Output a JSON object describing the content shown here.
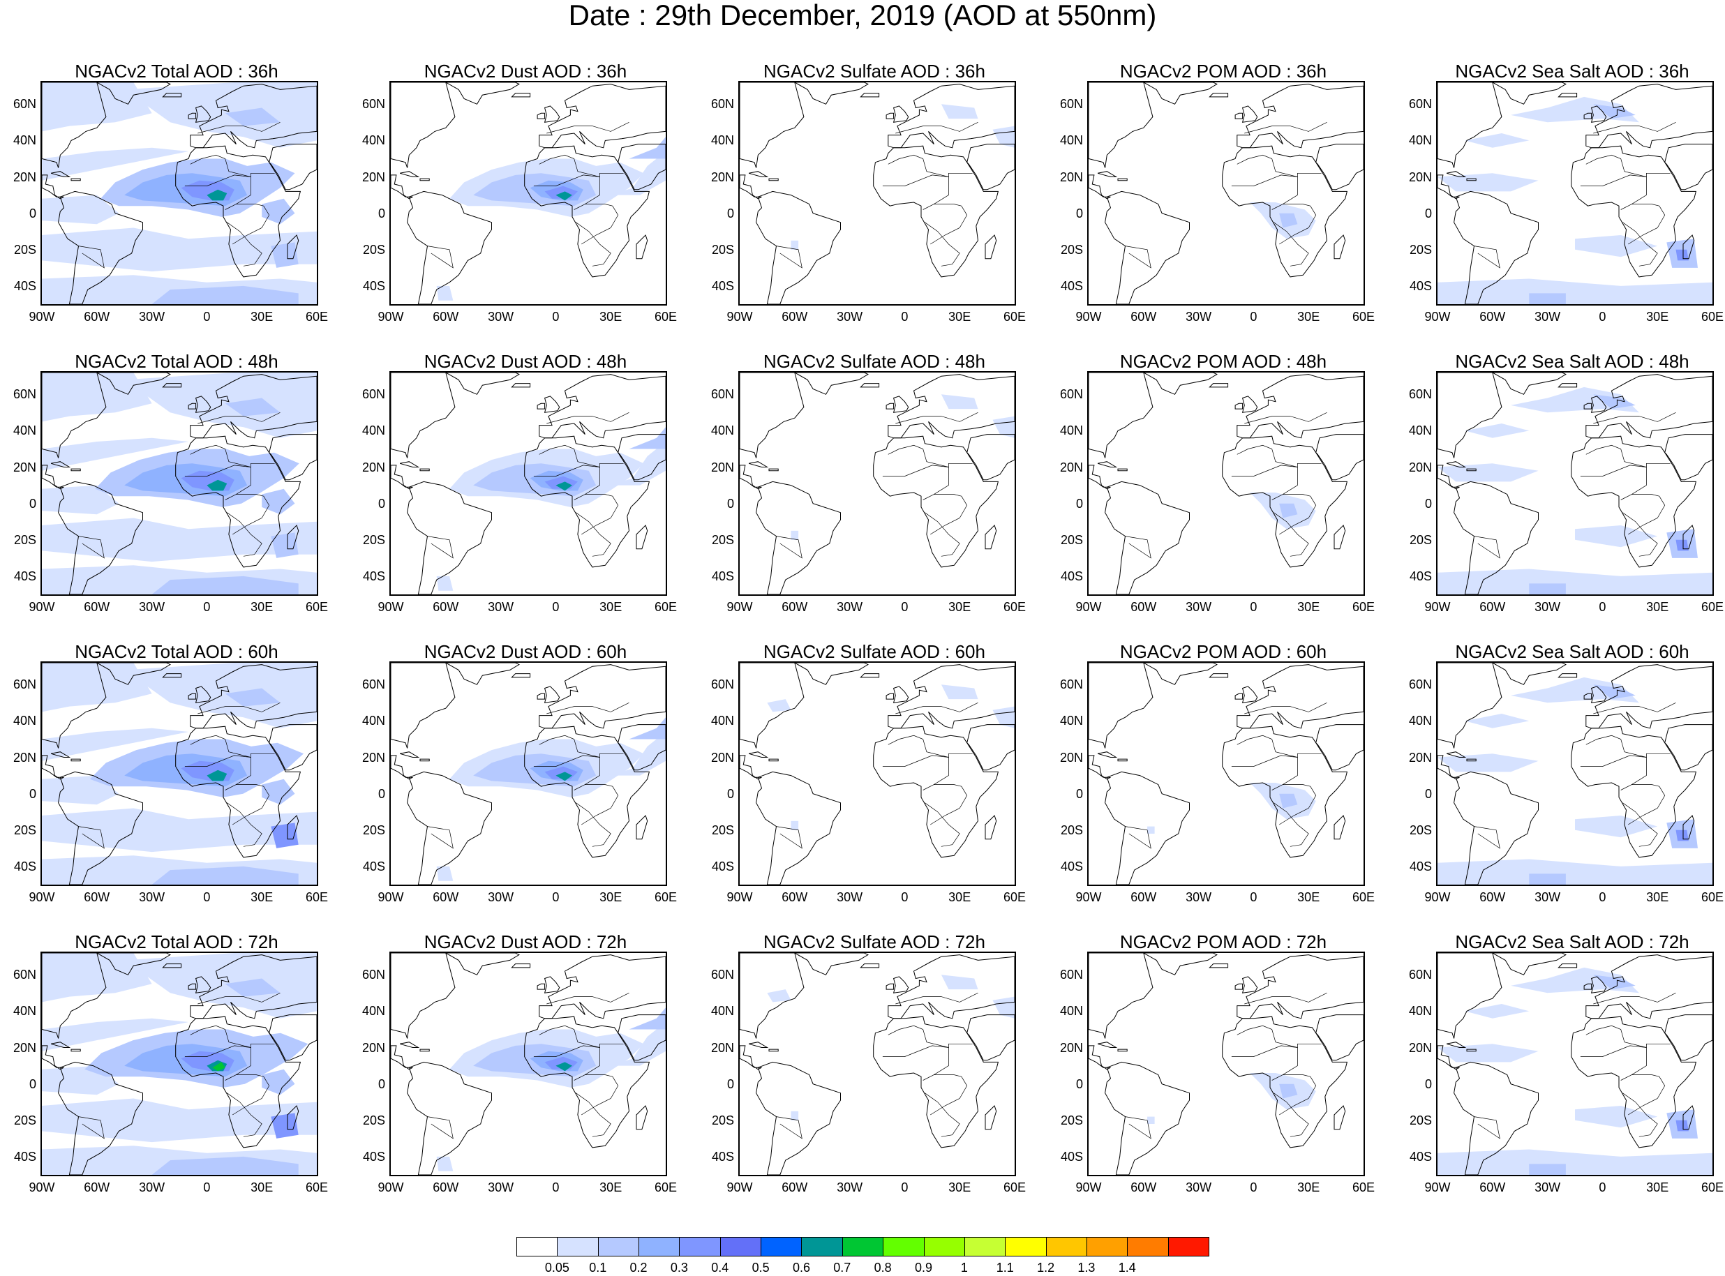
{
  "title": "Date : 29th December, 2019 (AOD at 550nm)",
  "lat_labels": [
    "60N",
    "40N",
    "20N",
    "0",
    "20S",
    "40S"
  ],
  "lon_labels": [
    "90W",
    "60W",
    "30W",
    "0",
    "30E",
    "60E"
  ],
  "panel_titles": [
    [
      "NGACv2 Total AOD : 36h",
      "NGACv2 Dust AOD : 36h",
      "NGACv2 Sulfate AOD : 36h",
      "NGACv2 POM AOD : 36h",
      "NGACv2 Sea Salt AOD : 36h"
    ],
    [
      "NGACv2 Total AOD : 48h",
      "NGACv2 Dust AOD : 48h",
      "NGACv2 Sulfate AOD : 48h",
      "NGACv2 POM AOD : 48h",
      "NGACv2 Sea Salt AOD : 48h"
    ],
    [
      "NGACv2 Total AOD : 60h",
      "NGACv2 Dust AOD : 60h",
      "NGACv2 Sulfate AOD : 60h",
      "NGACv2 POM AOD : 60h",
      "NGACv2 Sea Salt AOD : 60h"
    ],
    [
      "NGACv2 Total AOD : 72h",
      "NGACv2 Dust AOD : 72h",
      "NGACv2 Sulfate AOD : 72h",
      "NGACv2 POM AOD : 72h",
      "NGACv2 Sea Salt  AOD : 72h"
    ]
  ],
  "colorbar": {
    "labels": [
      "0.05",
      "0.1",
      "0.2",
      "0.3",
      "0.4",
      "0.5",
      "0.6",
      "0.7",
      "0.8",
      "0.9",
      "1",
      "1.1",
      "1.2",
      "1.3",
      "1.4"
    ],
    "colors": [
      "#ffffff",
      "#d6e2ff",
      "#b5c9ff",
      "#8fb2ff",
      "#7f96ff",
      "#6370f8",
      "#0063ff",
      "#009696",
      "#00c633",
      "#63ff00",
      "#96ff00",
      "#c6ff33",
      "#ffff00",
      "#ffc600",
      "#ffa000",
      "#ff7c00",
      "#ff1900"
    ]
  },
  "colors": {
    "light": "#d6e2ff",
    "mid": "#b5c9ff",
    "medium": "#8fb2ff",
    "strong": "#7f96ff",
    "deep": "#6370f8",
    "teal": "#009696",
    "green": "#00c633",
    "coast": "#000000"
  }
}
